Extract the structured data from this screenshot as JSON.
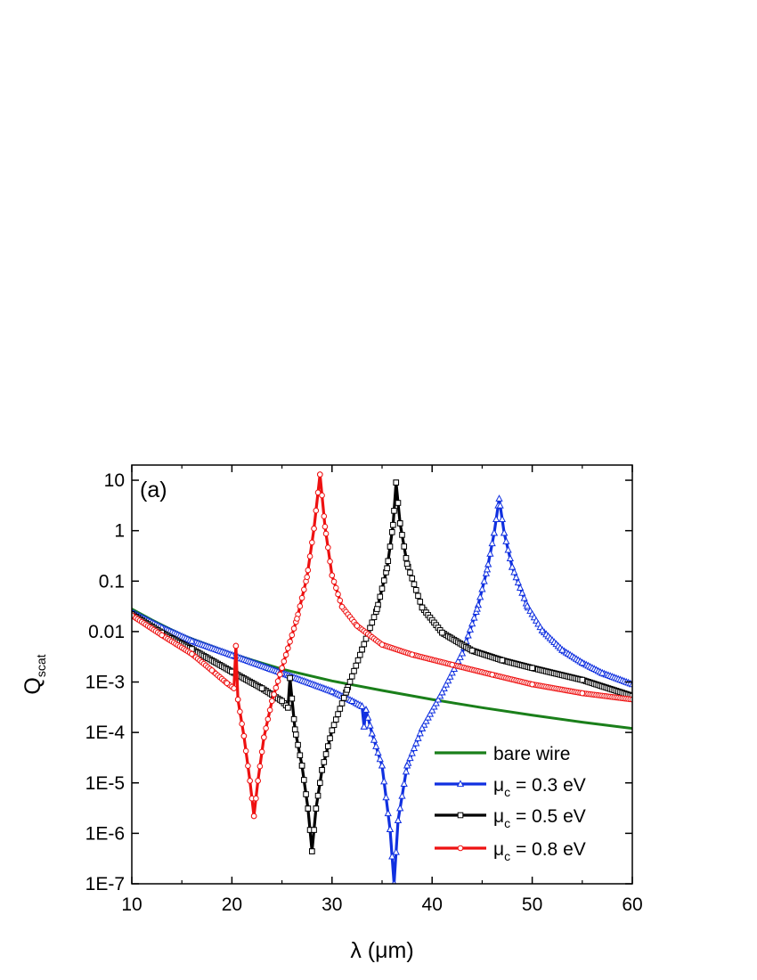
{
  "chart_data": {
    "type": "line",
    "annotation": "(a)",
    "xlabel": "λ (μm)",
    "ylabel_main": "Q",
    "ylabel_sub": "scat",
    "xlim": [
      10,
      60
    ],
    "ylim": [
      1e-07,
      20
    ],
    "yscale": "log",
    "grid": false,
    "legend_position": "bottom-right",
    "x_ticks": [
      10,
      20,
      30,
      40,
      50,
      60
    ],
    "x_tick_labels": [
      "10",
      "20",
      "30",
      "40",
      "50",
      "60"
    ],
    "y_ticks": [
      1e-07,
      1e-06,
      1e-05,
      0.0001,
      0.001,
      0.01,
      0.1,
      1,
      10
    ],
    "y_tick_labels": [
      "1E-7",
      "1E-6",
      "1E-5",
      "1E-4",
      "1E-3",
      "0.01",
      "0.1",
      "1",
      "10"
    ],
    "series": [
      {
        "name": "bare wire",
        "legend_label": "bare wire",
        "legend_subscript": "",
        "legend_suffix": "",
        "color": "#1a7f1a",
        "marker": "none",
        "x": [
          10,
          12,
          15,
          20,
          25,
          30,
          35,
          40,
          45,
          50,
          55,
          60
        ],
        "y": [
          0.028,
          0.017,
          0.0085,
          0.0036,
          0.0018,
          0.00105,
          0.00068,
          0.00045,
          0.00031,
          0.00022,
          0.00016,
          0.00012
        ]
      },
      {
        "name": "μc = 0.3 eV",
        "legend_label": "μ",
        "legend_subscript": "c",
        "legend_suffix": " = 0.3 eV",
        "color": "#1030e0",
        "marker": "triangle",
        "x": [
          10,
          13,
          16,
          20,
          25,
          30,
          32,
          33,
          33.2,
          33.4,
          34,
          35,
          35.8,
          36.2,
          36.6,
          37.5,
          39,
          41,
          43,
          44.5,
          45.5,
          46.2,
          46.7,
          47.2,
          48,
          49.5,
          51,
          53,
          55,
          57,
          60
        ],
        "y": [
          0.024,
          0.012,
          0.0065,
          0.0034,
          0.0015,
          0.00065,
          0.00042,
          0.00033,
          0.00013,
          0.00028,
          9.5e-05,
          2.2e-05,
          1.2e-06,
          1e-07,
          1.8e-06,
          2.2e-05,
          0.00012,
          0.00062,
          0.0037,
          0.028,
          0.17,
          0.9,
          4.3,
          0.9,
          0.19,
          0.032,
          0.0105,
          0.0043,
          0.0024,
          0.0015,
          0.0009
        ]
      },
      {
        "name": "μc = 0.5 eV",
        "legend_label": "μ",
        "legend_subscript": "c",
        "legend_suffix": " = 0.5 eV",
        "color": "#000000",
        "marker": "square",
        "x": [
          10,
          13,
          16,
          20,
          23,
          25,
          25.6,
          25.8,
          26.3,
          27,
          27.6,
          28,
          28.4,
          29,
          30,
          31.5,
          33,
          34.5,
          35.5,
          36.1,
          36.4,
          36.8,
          37.5,
          39,
          41,
          44,
          47,
          50,
          55,
          60
        ],
        "y": [
          0.022,
          0.0095,
          0.0045,
          0.0016,
          0.00075,
          0.00042,
          0.00031,
          0.0012,
          0.000115,
          2.2e-05,
          3.1e-06,
          4.4e-07,
          3.1e-06,
          1.8e-05,
          0.00011,
          0.0007,
          0.0044,
          0.028,
          0.18,
          1.3,
          9.0,
          1.4,
          0.22,
          0.03,
          0.0095,
          0.0042,
          0.0027,
          0.0019,
          0.0011,
          0.00053
        ]
      },
      {
        "name": "μc = 0.8 eV",
        "legend_label": "μ",
        "legend_subscript": "c",
        "legend_suffix": " = 0.8 eV",
        "color": "#ee1111",
        "marker": "circle",
        "x": [
          10,
          13,
          16,
          18,
          19.5,
          20.2,
          20.4,
          20.6,
          21.2,
          21.8,
          22.2,
          22.6,
          23.2,
          24,
          25,
          26.5,
          27.5,
          28.2,
          28.8,
          29.3,
          30,
          31,
          32.5,
          35,
          38,
          42,
          46,
          50,
          55,
          60
        ],
        "y": [
          0.021,
          0.0085,
          0.0036,
          0.0017,
          0.00095,
          0.00075,
          0.0052,
          0.00045,
          8.5e-05,
          1.1e-05,
          2.2e-06,
          1.1e-05,
          8e-05,
          0.00042,
          0.0019,
          0.018,
          0.12,
          1.1,
          13.0,
          1.2,
          0.13,
          0.031,
          0.013,
          0.0055,
          0.0035,
          0.0022,
          0.0014,
          0.0009,
          0.0006,
          0.00045
        ]
      }
    ]
  }
}
